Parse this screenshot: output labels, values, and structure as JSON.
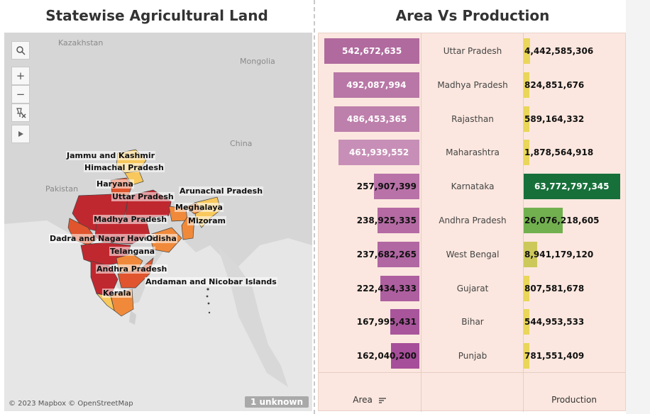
{
  "map": {
    "title": "Statewise Agricultural Land",
    "attribution": "© 2023 Mapbox © OpenStreetMap",
    "unknown_badge": "1 unknown",
    "geo_labels": [
      "Kazakhstan",
      "Mongolia",
      "China",
      "Pakistan"
    ],
    "state_labels": [
      "Jammu and Kashmir",
      "Himachal Pradesh",
      "Haryana",
      "Uttar Pradesh",
      "Arunachal Pradesh",
      "Meghalaya",
      "Mizoram",
      "Madhya Pradesh",
      "Dadra and Nagar Haveli",
      "Odisha",
      "Telangana",
      "Andhra Pradesh",
      "Andaman and Nicobar Islands",
      "Kerala"
    ],
    "controls": {
      "search_icon": "search-icon",
      "zoom_in": "+",
      "zoom_out": "−",
      "pin_icon": "pin-off-icon",
      "play_icon": "play-icon"
    },
    "palette": {
      "high": "#c0282f",
      "mid_high": "#e0552d",
      "mid": "#f08a3a",
      "low": "#f8c85c",
      "water": "#e6e6e6",
      "land": "#d9d9d9"
    }
  },
  "chart_data": {
    "type": "bar",
    "title": "Area Vs Production",
    "categories": [
      "Uttar Pradesh",
      "Madhya Pradesh",
      "Rajasthan",
      "Maharashtra",
      "Karnataka",
      "Andhra Pradesh",
      "West Bengal",
      "Gujarat",
      "Bihar",
      "Punjab"
    ],
    "series": [
      {
        "name": "Area",
        "values": [
          542672635,
          492087994,
          486453365,
          461939552,
          257907399,
          238925335,
          237682265,
          222434333,
          167995431,
          162040200
        ],
        "labels": [
          "542,672,635",
          "492,087,994",
          "486,453,365",
          "461,939,552",
          "257,907,399",
          "238,925,335",
          "237,682,265",
          "222,434,333",
          "167,995,431",
          "162,040,200"
        ],
        "colors": [
          "#b06a9e",
          "#b877a6",
          "#bd7fab",
          "#c78fb7",
          "#b872a8",
          "#b56aa4",
          "#b167a2",
          "#ae5fa0",
          "#a8559b",
          "#a64e99"
        ]
      },
      {
        "name": "Production",
        "values": [
          4442585306,
          824851676,
          589164332,
          1878564918,
          63772797345,
          26076218605,
          8941179120,
          807581678,
          544953533,
          781551409
        ],
        "labels": [
          "4,442,585,306",
          "824,851,676",
          "589,164,332",
          "1,878,564,918",
          "63,772,797,345",
          "26,076,218,605",
          "8,941,179,120",
          "807,581,678",
          "544,953,533",
          "781,551,409"
        ],
        "colors": [
          "#e9d65a",
          "#e9d65a",
          "#e9d65a",
          "#e9d65a",
          "#17703a",
          "#72b04f",
          "#cdc85a",
          "#e9d65a",
          "#e9d65a",
          "#e9d65a"
        ]
      }
    ],
    "footer": {
      "area": "Area",
      "state": "",
      "production": "Production"
    },
    "sort_icon": "sort-descending-icon"
  }
}
